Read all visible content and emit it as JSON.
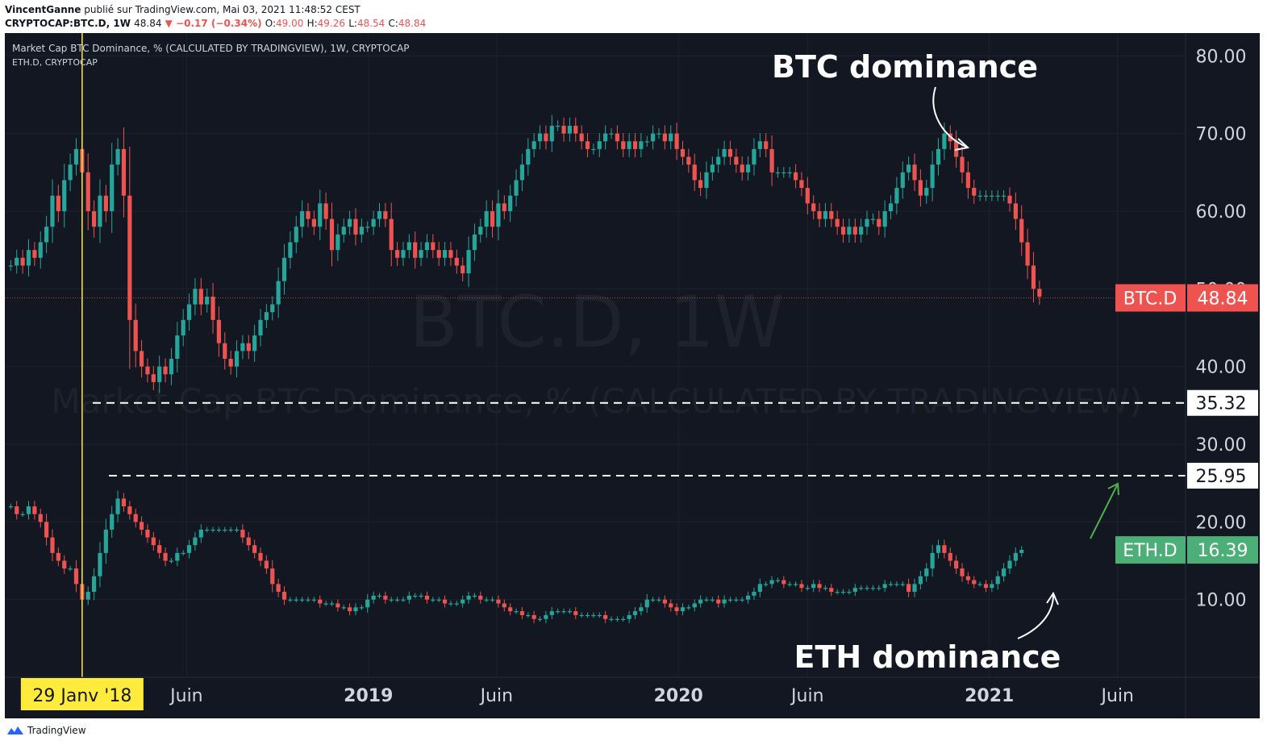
{
  "header": {
    "author": "VincentGanne",
    "published_text": " publié sur TradingView.com, Mai 03, 2021 11:48:52 CEST",
    "symbol": "CRYPTOCAP:BTC.D, 1W",
    "last": "48.84",
    "change": "▼ −0.17 (−0.34%)",
    "o_label": "O:",
    "o": "49.00",
    "h_label": "H:",
    "h": "49.26",
    "l_label": "L:",
    "l": "48.54",
    "c_label": "C:",
    "c": "48.84"
  },
  "legend": {
    "line1": "Market Cap BTC Dominance, % (CALCULATED BY TRADINGVIEW), 1W, CRYPTOCAP",
    "line2": "ETH.D, CRYPTOCAP"
  },
  "watermark": {
    "big": "BTC.D, 1W",
    "sub": "Market Cap BTC Dominance, % (CALCULATED BY TRADINGVIEW)"
  },
  "annotations": {
    "btc": "BTC dominance",
    "eth": "ETH dominance"
  },
  "footer": {
    "brand": "TradingView"
  },
  "colors": {
    "background": "#131722",
    "up": "#26a69a",
    "down": "#ef5350",
    "grid": "#1e222d",
    "axis_text": "#d1d4dc",
    "highlight": "#ffeb3b",
    "eth_badge": "#4caf78"
  },
  "chart_data": {
    "type": "candlestick",
    "timeframe": "1W",
    "y_axis": {
      "position": "right",
      "ticks": [
        "10.00",
        "20.00",
        "30.00",
        "40.00",
        "50.00",
        "60.00",
        "70.00",
        "80.00"
      ],
      "range": [
        0,
        82
      ]
    },
    "x_axis": {
      "tick_labels": [
        {
          "date": "2018-06-01",
          "label": "Juin"
        },
        {
          "date": "2019-01-01",
          "label": "2019"
        },
        {
          "date": "2019-06-01",
          "label": "Juin"
        },
        {
          "date": "2020-01-01",
          "label": "2020"
        },
        {
          "date": "2020-06-01",
          "label": "Juin"
        },
        {
          "date": "2021-01-01",
          "label": "2021"
        },
        {
          "date": "2021-06-01",
          "label": "Juin"
        }
      ],
      "range": [
        "2017-10-30",
        "2021-08-20"
      ]
    },
    "highlight_date": {
      "date": "2018-01-29",
      "label": "29 Janv '18"
    },
    "levels": [
      {
        "value": 35.32,
        "label": "35.32"
      },
      {
        "value": 25.95,
        "label": "25.95"
      }
    ],
    "last_price_labels": [
      {
        "symbol": "BTC.D",
        "value": "48.84"
      },
      {
        "symbol": "ETH.D",
        "value": "16.39"
      }
    ],
    "series": [
      {
        "name": "BTC.D",
        "start": "2017-11-06",
        "closes": [
          53,
          54,
          53,
          55,
          54,
          56,
          58,
          62,
          60,
          64,
          66,
          68,
          65,
          60,
          58,
          62,
          60,
          66,
          68,
          62,
          46,
          42,
          40,
          39,
          38,
          40,
          39,
          41,
          44,
          46,
          48,
          50,
          48,
          49,
          46,
          43,
          41,
          40,
          42,
          43,
          42,
          44,
          46,
          47,
          48,
          51,
          54,
          56,
          58,
          60,
          59,
          58,
          61,
          59,
          55,
          57,
          58,
          59,
          57,
          58,
          58,
          59,
          60,
          59,
          55,
          54,
          55,
          56,
          54,
          55,
          56,
          55,
          54,
          55,
          54,
          53,
          52,
          55,
          57,
          58,
          60,
          58,
          61,
          60,
          62,
          64,
          66,
          68,
          69,
          70,
          69,
          71,
          71,
          70,
          71,
          70,
          69,
          68,
          68,
          69,
          70,
          70,
          69,
          68,
          69,
          68,
          69,
          69,
          70,
          70,
          69,
          70,
          68,
          67,
          66,
          64,
          63,
          65,
          66,
          67,
          68,
          67,
          66,
          65,
          66,
          68,
          69,
          68,
          65,
          65,
          65,
          65,
          64,
          63,
          61,
          60,
          59,
          60,
          59,
          58,
          57,
          58,
          57,
          58,
          59,
          59,
          58,
          60,
          61,
          63,
          65,
          66,
          64,
          62,
          63,
          66,
          68,
          70,
          69,
          67,
          65,
          63,
          62,
          62,
          62,
          62,
          62,
          62,
          61,
          59,
          56,
          53,
          50,
          49
        ],
        "source_note": "values read approximately from the chart"
      },
      {
        "name": "ETH.D",
        "start": "2017-11-06",
        "closes": [
          22,
          21,
          21,
          22,
          21,
          20,
          18,
          16,
          15,
          14,
          14,
          12,
          10,
          11,
          13,
          16,
          19,
          21,
          23,
          22,
          21,
          20,
          19,
          18,
          17,
          16,
          15,
          15,
          16,
          16,
          17,
          18,
          19,
          19,
          19,
          19,
          19,
          19,
          19,
          18,
          17,
          16,
          15,
          14,
          12,
          11,
          10,
          10,
          10,
          10,
          10,
          10,
          9.5,
          9.5,
          9.5,
          9,
          9,
          8.5,
          9,
          9,
          10,
          10.5,
          10.5,
          10,
          10,
          10,
          10,
          10.5,
          10.5,
          10.5,
          10,
          10,
          10,
          9.5,
          9.5,
          9.5,
          10,
          10.5,
          10.5,
          10,
          10,
          10,
          9.5,
          9,
          8.5,
          8.5,
          8,
          8,
          7.5,
          7.5,
          8,
          8.5,
          8.5,
          8.5,
          8.5,
          8,
          8,
          8,
          8,
          8,
          7.5,
          7.5,
          7.5,
          7.5,
          8,
          8.5,
          9,
          10,
          10,
          10,
          9.5,
          9,
          8.5,
          9,
          9,
          9.5,
          10,
          10,
          10,
          9.5,
          10,
          10,
          10,
          10,
          10.5,
          11,
          12,
          12,
          12.5,
          12.5,
          12,
          12,
          12,
          11.5,
          11.5,
          12,
          11.5,
          11.5,
          11,
          11,
          11,
          11,
          11.5,
          11.5,
          11.5,
          11.5,
          11.5,
          12,
          12,
          12,
          12,
          11,
          12,
          13,
          14,
          16,
          17,
          16,
          15,
          14,
          13,
          12.5,
          12,
          12,
          11.5,
          12,
          13,
          14,
          15,
          16,
          16.4
        ],
        "source_note": "values read approximately from the chart"
      }
    ]
  }
}
